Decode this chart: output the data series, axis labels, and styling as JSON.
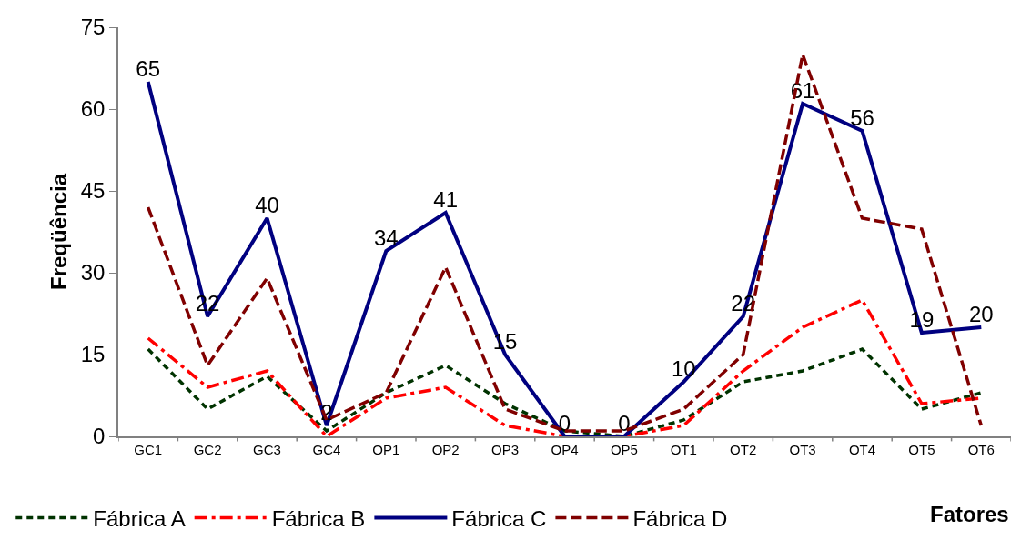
{
  "chart_data": {
    "type": "line",
    "xlabel": "Fatores",
    "ylabel": "Freqüência",
    "categories": [
      "GC1",
      "GC2",
      "GC3",
      "GC4",
      "OP1",
      "OP2",
      "OP3",
      "OP4",
      "OP5",
      "OT1",
      "OT2",
      "OT3",
      "OT4",
      "OT5",
      "OT6"
    ],
    "ylim": [
      0,
      75
    ],
    "yticks": [
      0,
      15,
      30,
      45,
      60,
      75
    ],
    "legend": "bottom left",
    "marker": "none",
    "series": [
      {
        "name": "Fábrica A",
        "color": "#003300",
        "line_style": "dotted",
        "values": [
          16,
          5,
          11,
          1,
          8,
          13,
          6,
          1,
          0,
          3,
          10,
          12,
          16,
          5,
          8
        ]
      },
      {
        "name": "Fábrica B",
        "color": "#ff0000",
        "line_style": "dashdot",
        "values": [
          18,
          9,
          12,
          0,
          7,
          9,
          2,
          0,
          0,
          2,
          12,
          20,
          25,
          6,
          7
        ]
      },
      {
        "name": "Fábrica C",
        "color": "#000080",
        "line_style": "solid",
        "values": [
          65,
          22,
          40,
          2,
          34,
          41,
          15,
          0,
          0,
          10,
          22,
          61,
          56,
          19,
          20
        ],
        "value_labels": [
          "65",
          "22",
          "40",
          "2",
          "34",
          "41",
          "15",
          "0",
          "0",
          "10",
          "22",
          "61",
          "56",
          "19",
          "20"
        ]
      },
      {
        "name": "Fábrica D",
        "color": "#800000",
        "line_style": "dashed",
        "values": [
          42,
          13,
          29,
          3,
          8,
          31,
          5,
          1,
          1,
          5,
          15,
          70,
          40,
          38,
          2
        ]
      }
    ]
  }
}
